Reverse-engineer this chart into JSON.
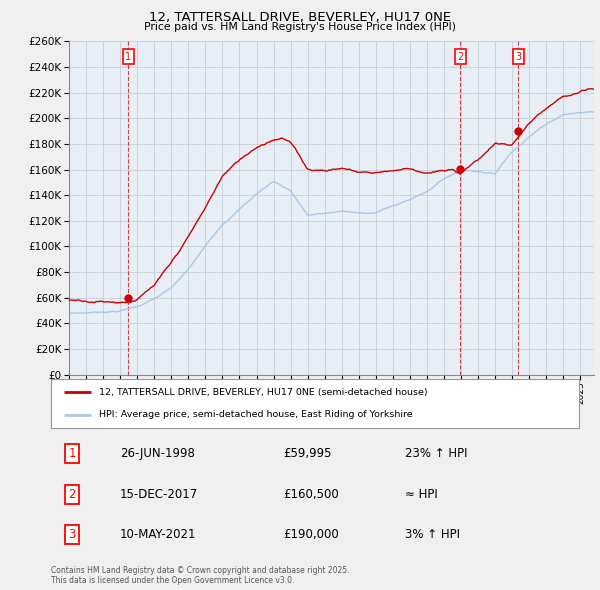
{
  "title": "12, TATTERSALL DRIVE, BEVERLEY, HU17 0NE",
  "subtitle": "Price paid vs. HM Land Registry's House Price Index (HPI)",
  "ylim": [
    0,
    260000
  ],
  "yticks": [
    0,
    20000,
    40000,
    60000,
    80000,
    100000,
    120000,
    140000,
    160000,
    180000,
    200000,
    220000,
    240000,
    260000
  ],
  "xlim_start": 1995.0,
  "xlim_end": 2025.8,
  "sales": [
    {
      "num": 1,
      "year": 1998.48,
      "price": 59995,
      "date": "26-JUN-1998",
      "price_str": "£59,995",
      "hpi_note": "23% ↑ HPI"
    },
    {
      "num": 2,
      "year": 2017.96,
      "price": 160500,
      "date": "15-DEC-2017",
      "price_str": "£160,500",
      "hpi_note": "≈ HPI"
    },
    {
      "num": 3,
      "year": 2021.36,
      "price": 190000,
      "date": "10-MAY-2021",
      "price_str": "£190,000",
      "hpi_note": "3% ↑ HPI"
    }
  ],
  "legend_line1": "12, TATTERSALL DRIVE, BEVERLEY, HU17 0NE (semi-detached house)",
  "legend_line2": "HPI: Average price, semi-detached house, East Riding of Yorkshire",
  "footer": "Contains HM Land Registry data © Crown copyright and database right 2025.\nThis data is licensed under the Open Government Licence v3.0.",
  "line_color_red": "#cc0000",
  "line_color_blue": "#aac8e8",
  "background_color": "#f0f0f0",
  "plot_bg_color": "#e8eef5",
  "grid_color": "#c0c8d0",
  "marker_color_red": "#cc0000",
  "sale_line_color": "#cc2222",
  "hpi_key_years": [
    1995.0,
    1996.0,
    1997.0,
    1998.0,
    1999.0,
    2000.0,
    2001.0,
    2002.0,
    2003.0,
    2004.0,
    2005.0,
    2006.0,
    2007.0,
    2008.0,
    2009.0,
    2010.0,
    2011.0,
    2012.0,
    2013.0,
    2014.0,
    2015.0,
    2016.0,
    2017.0,
    2018.0,
    2019.0,
    2020.0,
    2021.0,
    2022.0,
    2023.0,
    2024.0,
    2025.5
  ],
  "hpi_key_vals": [
    48000,
    48500,
    49500,
    50500,
    54000,
    60000,
    68000,
    82000,
    100000,
    118000,
    130000,
    142000,
    152000,
    145000,
    126000,
    127000,
    129000,
    127000,
    128000,
    133000,
    138000,
    145000,
    155000,
    162000,
    162000,
    160000,
    178000,
    190000,
    200000,
    208000,
    210000
  ],
  "price_key_years": [
    1995.0,
    1996.0,
    1997.0,
    1998.0,
    1998.5,
    1999.0,
    2000.0,
    2001.0,
    2002.0,
    2003.0,
    2004.0,
    2005.0,
    2006.0,
    2007.0,
    2007.5,
    2008.0,
    2009.0,
    2010.0,
    2011.0,
    2012.0,
    2013.0,
    2014.0,
    2015.0,
    2016.0,
    2017.0,
    2017.5,
    2017.96,
    2018.0,
    2019.0,
    2020.0,
    2021.0,
    2021.4,
    2022.0,
    2023.0,
    2024.0,
    2025.5
  ],
  "price_key_vals": [
    58500,
    58800,
    59000,
    59200,
    59995,
    62000,
    72000,
    88000,
    108000,
    130000,
    155000,
    167000,
    178000,
    185000,
    187000,
    183000,
    162000,
    162000,
    164000,
    161000,
    161000,
    163000,
    165000,
    162000,
    163000,
    163000,
    160500,
    162000,
    172000,
    185000,
    183000,
    190000,
    200000,
    210000,
    218000,
    222000
  ]
}
